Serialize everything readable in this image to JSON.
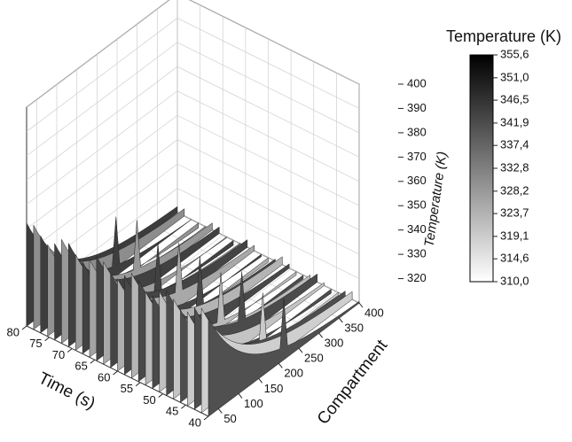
{
  "chart_data": {
    "type": "surface",
    "x_label": "Time (s)",
    "y_label": "Compartment",
    "z_label": "Temperature (K)",
    "colorbar_title": "Temperature (K)",
    "xlim": [
      40,
      80
    ],
    "xticks": [
      40,
      45,
      50,
      55,
      60,
      65,
      70,
      75,
      80
    ],
    "ylim": [
      25,
      400
    ],
    "yticks": [
      50,
      100,
      150,
      200,
      250,
      300,
      350,
      400
    ],
    "zlim": [
      310,
      400
    ],
    "zticks": [
      320,
      330,
      340,
      350,
      360,
      370,
      380,
      390,
      400
    ],
    "clim": [
      310.0,
      355.6
    ],
    "cticks": [
      {
        "value": 310.0,
        "label": "310,0"
      },
      {
        "value": 314.6,
        "label": "314,6"
      },
      {
        "value": 319.1,
        "label": "319,1"
      },
      {
        "value": 323.7,
        "label": "323,7"
      },
      {
        "value": 328.2,
        "label": "328,2"
      },
      {
        "value": 332.8,
        "label": "332,8"
      },
      {
        "value": 337.4,
        "label": "337,4"
      },
      {
        "value": 341.9,
        "label": "341,9"
      },
      {
        "value": 346.5,
        "label": "346,5"
      },
      {
        "value": 351.0,
        "label": "351,0"
      },
      {
        "value": 355.6,
        "label": "355,6"
      }
    ],
    "colormap": [
      "#ffffff",
      "#000000"
    ],
    "grid": true
  }
}
